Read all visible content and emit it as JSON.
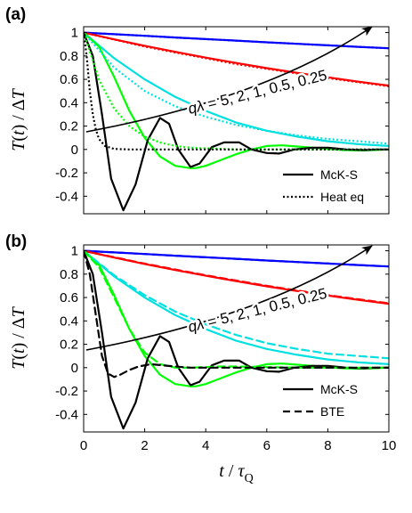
{
  "chart_data": [
    {
      "type": "line",
      "panel_label": "(a)",
      "title": "",
      "xlim": [
        0,
        10
      ],
      "ylim": [
        -0.55,
        1.05
      ],
      "xticks": [
        0,
        2,
        4,
        6,
        8,
        10
      ],
      "yticks": [
        1,
        0.8,
        0.6,
        0.4,
        0.2,
        0,
        -0.2,
        -0.4
      ],
      "ytick_labels": [
        "1",
        "0.8",
        "0.6",
        "0.4",
        "0.2",
        "0",
        "-0.2",
        "-0.4"
      ],
      "show_xtick_labels": false,
      "grid": false,
      "ylabel": "T(t) / ΔT",
      "annotation": "qλ = 5, 2, 1, 0.5, 0.25",
      "legend": {
        "position": "bottom-right",
        "entries": [
          {
            "label": "McK-S",
            "style": "solid",
            "color": "#000000"
          },
          {
            "label": "Heat eq",
            "style": "dotted",
            "color": "#000000"
          }
        ]
      },
      "series": [
        {
          "model": "McK-S",
          "q_lambda": 0.25,
          "color": "#0000ff",
          "style": "solid",
          "x": [
            0,
            1,
            2,
            3,
            4,
            5,
            6,
            7,
            8,
            9,
            10
          ],
          "y": [
            1.0,
            0.986,
            0.972,
            0.958,
            0.944,
            0.931,
            0.917,
            0.904,
            0.891,
            0.878,
            0.866
          ]
        },
        {
          "model": "McK-S",
          "q_lambda": 0.5,
          "color": "#ff0000",
          "style": "solid",
          "x": [
            0,
            1,
            2,
            3,
            4,
            5,
            6,
            7,
            8,
            9,
            10
          ],
          "y": [
            1.0,
            0.942,
            0.887,
            0.835,
            0.786,
            0.74,
            0.696,
            0.655,
            0.617,
            0.58,
            0.546
          ]
        },
        {
          "model": "McK-S",
          "q_lambda": 1,
          "color": "#00e0e0",
          "style": "solid",
          "x": [
            0,
            1,
            2,
            3,
            4,
            5,
            6,
            7,
            8,
            9,
            10
          ],
          "y": [
            1.0,
            0.78,
            0.6,
            0.45,
            0.33,
            0.23,
            0.16,
            0.11,
            0.07,
            0.045,
            0.03
          ]
        },
        {
          "model": "McK-S",
          "q_lambda": 2,
          "color": "#00ff00",
          "style": "solid",
          "x": [
            0,
            0.5,
            1,
            1.5,
            2,
            2.5,
            3,
            3.5,
            3.7,
            4,
            4.5,
            5,
            5.5,
            6,
            6.5,
            7,
            7.5,
            8,
            8.5,
            9,
            9.5,
            10
          ],
          "y": [
            1.0,
            0.88,
            0.62,
            0.33,
            0.1,
            -0.06,
            -0.14,
            -0.16,
            -0.158,
            -0.14,
            -0.09,
            -0.04,
            0.0,
            0.03,
            0.035,
            0.025,
            0.015,
            0.005,
            -0.005,
            -0.008,
            -0.005,
            0.0
          ]
        },
        {
          "model": "McK-S",
          "q_lambda": 5,
          "color": "#000000",
          "style": "solid",
          "x": [
            0,
            0.3,
            0.6,
            0.9,
            1.3,
            1.7,
            2.1,
            2.5,
            2.8,
            3.1,
            3.5,
            3.8,
            4.2,
            4.6,
            5.1,
            5.5,
            6.0,
            6.4,
            6.9,
            7.5,
            8.0,
            8.6,
            9.2,
            9.6,
            10
          ],
          "y": [
            1.0,
            0.8,
            0.3,
            -0.25,
            -0.52,
            -0.3,
            0.08,
            0.27,
            0.22,
            0.0,
            -0.15,
            -0.12,
            0.02,
            0.06,
            0.06,
            0.0,
            -0.03,
            -0.035,
            0.0,
            0.015,
            0.015,
            0.0,
            -0.005,
            0.0,
            0.0
          ]
        },
        {
          "model": "Heat eq",
          "q_lambda": 0.25,
          "color": "#0000ff",
          "style": "dotted",
          "x": [
            0,
            1,
            2,
            3,
            4,
            5,
            6,
            7,
            8,
            9,
            10
          ],
          "y": [
            1.0,
            0.986,
            0.972,
            0.958,
            0.944,
            0.931,
            0.917,
            0.904,
            0.891,
            0.878,
            0.866
          ]
        },
        {
          "model": "Heat eq",
          "q_lambda": 0.5,
          "color": "#ff0000",
          "style": "dotted",
          "x": [
            0,
            1,
            2,
            3,
            4,
            5,
            6,
            7,
            8,
            9,
            10
          ],
          "y": [
            1.0,
            0.94,
            0.88,
            0.83,
            0.78,
            0.73,
            0.69,
            0.65,
            0.61,
            0.575,
            0.54
          ]
        },
        {
          "model": "Heat eq",
          "q_lambda": 1,
          "color": "#00e0e0",
          "style": "dotted",
          "x": [
            0,
            1,
            2,
            3,
            4,
            5,
            6,
            7,
            8,
            9,
            10
          ],
          "y": [
            1.0,
            0.7,
            0.5,
            0.37,
            0.28,
            0.21,
            0.16,
            0.12,
            0.09,
            0.07,
            0.05
          ]
        },
        {
          "model": "Heat eq",
          "q_lambda": 2,
          "color": "#00ff00",
          "style": "dotted",
          "x": [
            0,
            0.5,
            1,
            1.5,
            2,
            2.5,
            3,
            3.5,
            4,
            5,
            6,
            7,
            8,
            9,
            10
          ],
          "y": [
            1.0,
            0.6,
            0.35,
            0.2,
            0.11,
            0.06,
            0.03,
            0.015,
            0.01,
            0.0,
            0.0,
            0.0,
            0.0,
            0.0,
            0.0
          ]
        },
        {
          "model": "Heat eq",
          "q_lambda": 5,
          "color": "#000000",
          "style": "dotted",
          "x": [
            0,
            0.1,
            0.2,
            0.3,
            0.4,
            0.5,
            0.7,
            1.0,
            1.5,
            2,
            3,
            4,
            5,
            6,
            7,
            8,
            9,
            10
          ],
          "y": [
            1.0,
            0.8,
            0.5,
            0.3,
            0.17,
            0.09,
            0.03,
            0.005,
            0,
            0,
            0,
            0,
            0,
            0,
            0,
            0,
            0,
            0
          ]
        }
      ]
    },
    {
      "type": "line",
      "panel_label": "(b)",
      "title": "",
      "xlim": [
        0,
        10
      ],
      "ylim": [
        -0.55,
        1.05
      ],
      "xticks": [
        0,
        2,
        4,
        6,
        8,
        10
      ],
      "xtick_labels": [
        "0",
        "2",
        "4",
        "6",
        "8",
        "10"
      ],
      "yticks": [
        1,
        0.8,
        0.6,
        0.4,
        0.2,
        0,
        -0.2,
        -0.4
      ],
      "ytick_labels": [
        "1",
        "0.8",
        "0.6",
        "0.4",
        "0.2",
        "0",
        "-0.2",
        "-0.4"
      ],
      "show_xtick_labels": true,
      "grid": false,
      "xlabel": "t / τQ",
      "ylabel": "T(t) / ΔT",
      "annotation": "qλ = 5, 2, 1, 0.5, 0.25",
      "legend": {
        "position": "bottom-right",
        "entries": [
          {
            "label": "McK-S",
            "style": "solid",
            "color": "#000000"
          },
          {
            "label": "BTE",
            "style": "dashed",
            "color": "#000000"
          }
        ]
      },
      "series": [
        {
          "model": "McK-S",
          "q_lambda": 0.25,
          "color": "#0000ff",
          "style": "solid",
          "x": [
            0,
            1,
            2,
            3,
            4,
            5,
            6,
            7,
            8,
            9,
            10
          ],
          "y": [
            1.0,
            0.986,
            0.972,
            0.958,
            0.944,
            0.931,
            0.917,
            0.904,
            0.891,
            0.878,
            0.866
          ]
        },
        {
          "model": "McK-S",
          "q_lambda": 0.5,
          "color": "#ff0000",
          "style": "solid",
          "x": [
            0,
            1,
            2,
            3,
            4,
            5,
            6,
            7,
            8,
            9,
            10
          ],
          "y": [
            1.0,
            0.942,
            0.887,
            0.835,
            0.786,
            0.74,
            0.696,
            0.655,
            0.617,
            0.58,
            0.546
          ]
        },
        {
          "model": "McK-S",
          "q_lambda": 1,
          "color": "#00e0e0",
          "style": "solid",
          "x": [
            0,
            1,
            2,
            3,
            4,
            5,
            6,
            7,
            8,
            9,
            10
          ],
          "y": [
            1.0,
            0.78,
            0.6,
            0.45,
            0.33,
            0.23,
            0.16,
            0.11,
            0.07,
            0.045,
            0.03
          ]
        },
        {
          "model": "McK-S",
          "q_lambda": 2,
          "color": "#00ff00",
          "style": "solid",
          "x": [
            0,
            0.5,
            1,
            1.5,
            2,
            2.5,
            3,
            3.5,
            3.7,
            4,
            4.5,
            5,
            5.5,
            6,
            6.5,
            7,
            7.5,
            8,
            8.5,
            9,
            9.5,
            10
          ],
          "y": [
            1.0,
            0.88,
            0.62,
            0.33,
            0.1,
            -0.06,
            -0.14,
            -0.16,
            -0.158,
            -0.14,
            -0.09,
            -0.04,
            0.0,
            0.03,
            0.035,
            0.025,
            0.015,
            0.005,
            -0.005,
            -0.008,
            -0.005,
            0.0
          ]
        },
        {
          "model": "McK-S",
          "q_lambda": 5,
          "color": "#000000",
          "style": "solid",
          "x": [
            0,
            0.3,
            0.6,
            0.9,
            1.3,
            1.7,
            2.1,
            2.5,
            2.8,
            3.1,
            3.5,
            3.8,
            4.2,
            4.6,
            5.1,
            5.5,
            6.0,
            6.4,
            6.9,
            7.5,
            8.0,
            8.6,
            9.2,
            9.6,
            10
          ],
          "y": [
            1.0,
            0.8,
            0.3,
            -0.25,
            -0.52,
            -0.3,
            0.08,
            0.27,
            0.22,
            0.0,
            -0.15,
            -0.12,
            0.02,
            0.06,
            0.06,
            0.0,
            -0.03,
            -0.035,
            0.0,
            0.015,
            0.015,
            0.0,
            -0.005,
            0.0,
            0.0
          ]
        },
        {
          "model": "BTE",
          "q_lambda": 0.25,
          "color": "#0000ff",
          "style": "dashed",
          "x": [
            0,
            1,
            2,
            3,
            4,
            5,
            6,
            7,
            8,
            9,
            10
          ],
          "y": [
            1.0,
            0.986,
            0.972,
            0.958,
            0.944,
            0.931,
            0.917,
            0.904,
            0.891,
            0.878,
            0.866
          ]
        },
        {
          "model": "BTE",
          "q_lambda": 0.5,
          "color": "#ff0000",
          "style": "dashed",
          "x": [
            0,
            1,
            2,
            3,
            4,
            5,
            6,
            7,
            8,
            9,
            10
          ],
          "y": [
            1.0,
            0.945,
            0.89,
            0.84,
            0.79,
            0.745,
            0.7,
            0.66,
            0.62,
            0.585,
            0.55
          ]
        },
        {
          "model": "BTE",
          "q_lambda": 1,
          "color": "#00e0e0",
          "style": "dashed",
          "x": [
            0,
            1,
            2,
            3,
            4,
            5,
            6,
            7,
            8,
            9,
            10
          ],
          "y": [
            1.0,
            0.79,
            0.62,
            0.48,
            0.37,
            0.28,
            0.21,
            0.16,
            0.12,
            0.1,
            0.08
          ]
        },
        {
          "model": "BTE",
          "q_lambda": 2,
          "color": "#00ff00",
          "style": "dashed",
          "x": [
            0,
            0.5,
            1,
            1.5,
            2,
            2.5,
            3,
            3.5,
            4,
            4.5,
            5,
            6,
            7,
            8,
            9,
            10
          ],
          "y": [
            1.0,
            0.86,
            0.6,
            0.33,
            0.13,
            0.03,
            0.0,
            0.0,
            0.005,
            0.01,
            0.01,
            0.005,
            0.0,
            0.0,
            0.0,
            0.0
          ]
        },
        {
          "model": "BTE",
          "q_lambda": 5,
          "color": "#000000",
          "style": "dashed",
          "x": [
            0,
            0.2,
            0.4,
            0.6,
            0.8,
            1.0,
            1.2,
            1.5,
            1.8,
            2.2,
            2.6,
            3.0,
            3.5,
            4,
            5,
            6,
            7,
            8,
            9,
            10
          ],
          "y": [
            1.0,
            0.8,
            0.45,
            0.1,
            -0.05,
            -0.08,
            -0.06,
            -0.02,
            0.01,
            0.03,
            0.02,
            0.01,
            0.0,
            0.0,
            0.0,
            0.0,
            0.0,
            0.0,
            0.0,
            0.0
          ]
        }
      ]
    }
  ]
}
